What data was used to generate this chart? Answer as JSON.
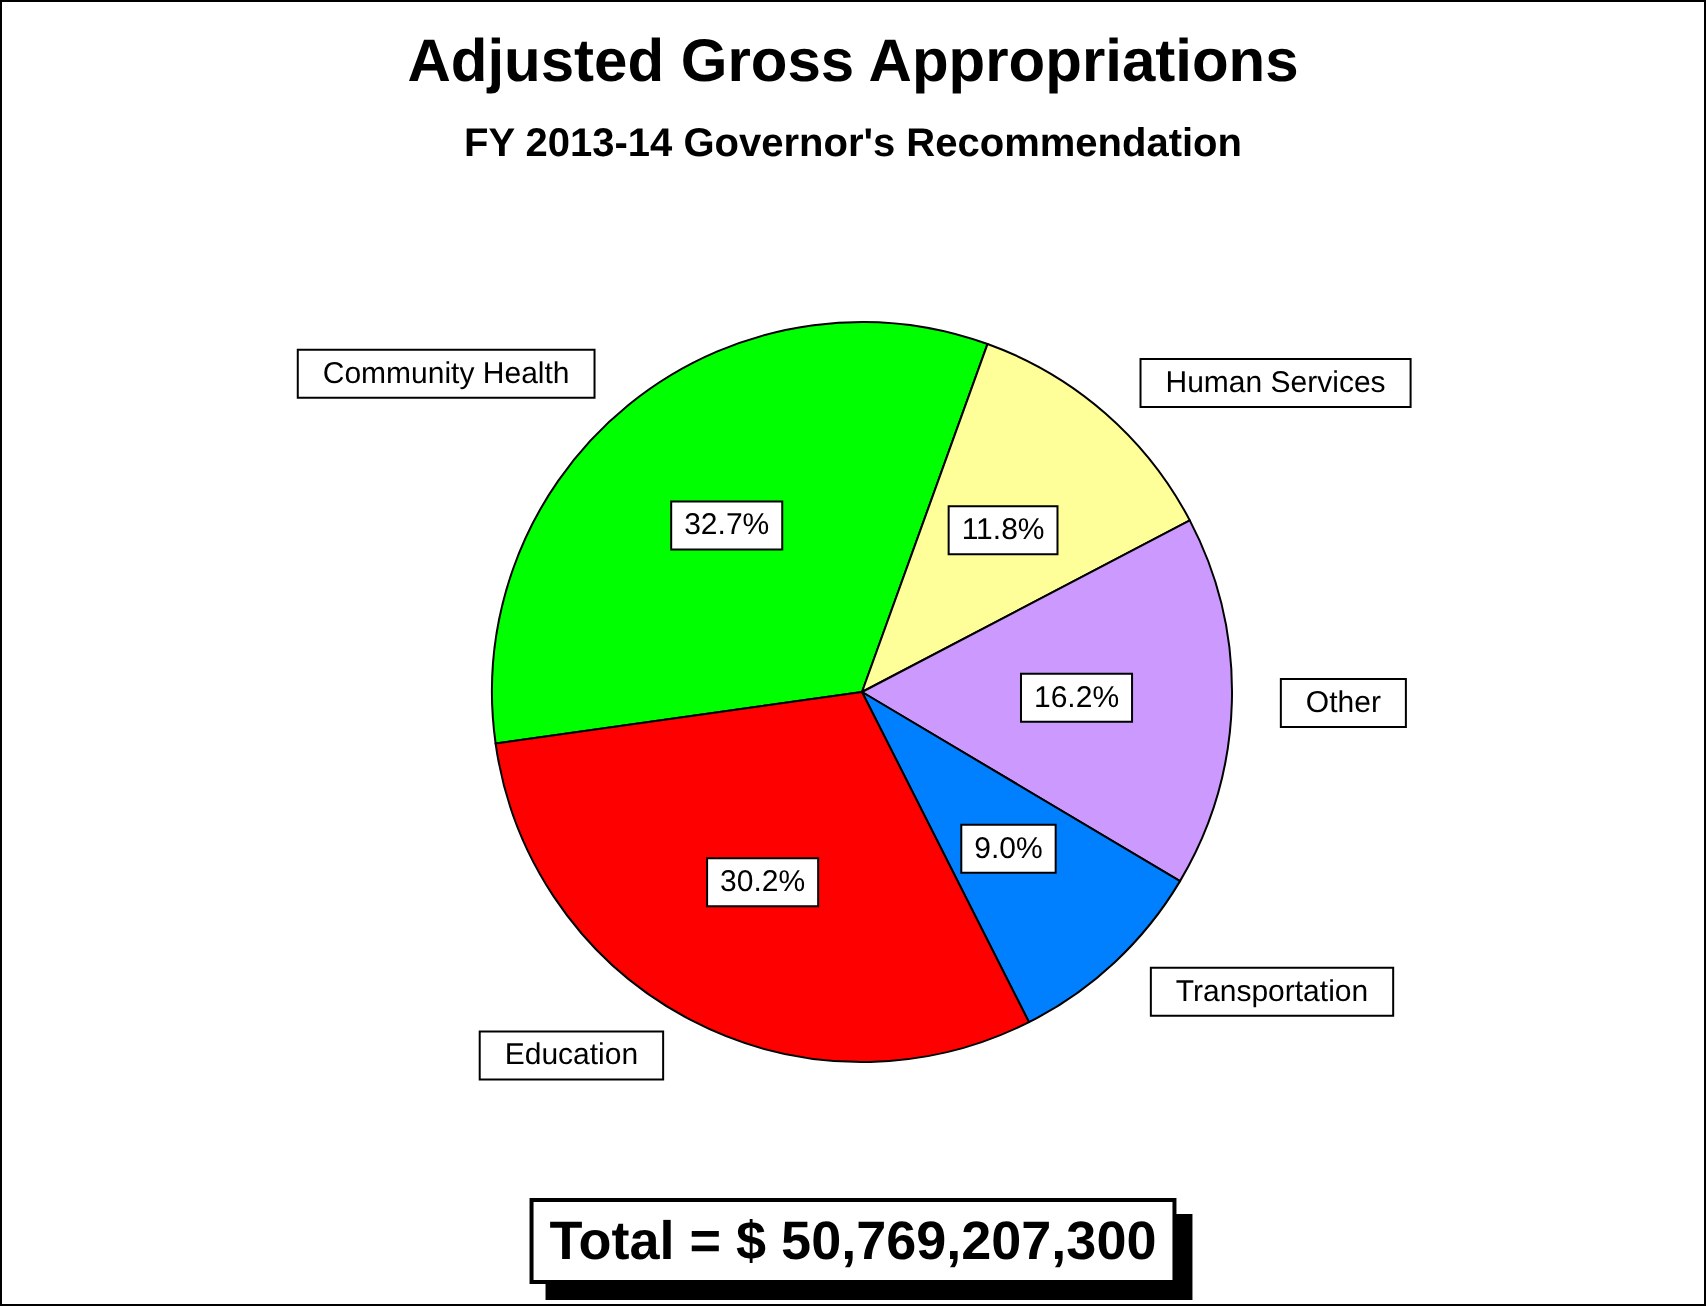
{
  "chart_data": {
    "type": "pie",
    "title": "Adjusted Gross Appropriations",
    "subtitle": "FY 2013-14 Governor's Recommendation",
    "categories": [
      "Community Health",
      "Human Services",
      "Other",
      "Transportation",
      "Education"
    ],
    "values": [
      32.7,
      11.8,
      16.2,
      9.0,
      30.2
    ],
    "value_labels": [
      "32.7%",
      "11.8%",
      "16.2%",
      "9.0%",
      "30.2%"
    ],
    "colors": [
      "#00ff00",
      "#ffff99",
      "#cc99ff",
      "#0080ff",
      "#ff0000"
    ],
    "annotations": [
      "Total = $ 50,769,207,300"
    ],
    "legend": false
  }
}
